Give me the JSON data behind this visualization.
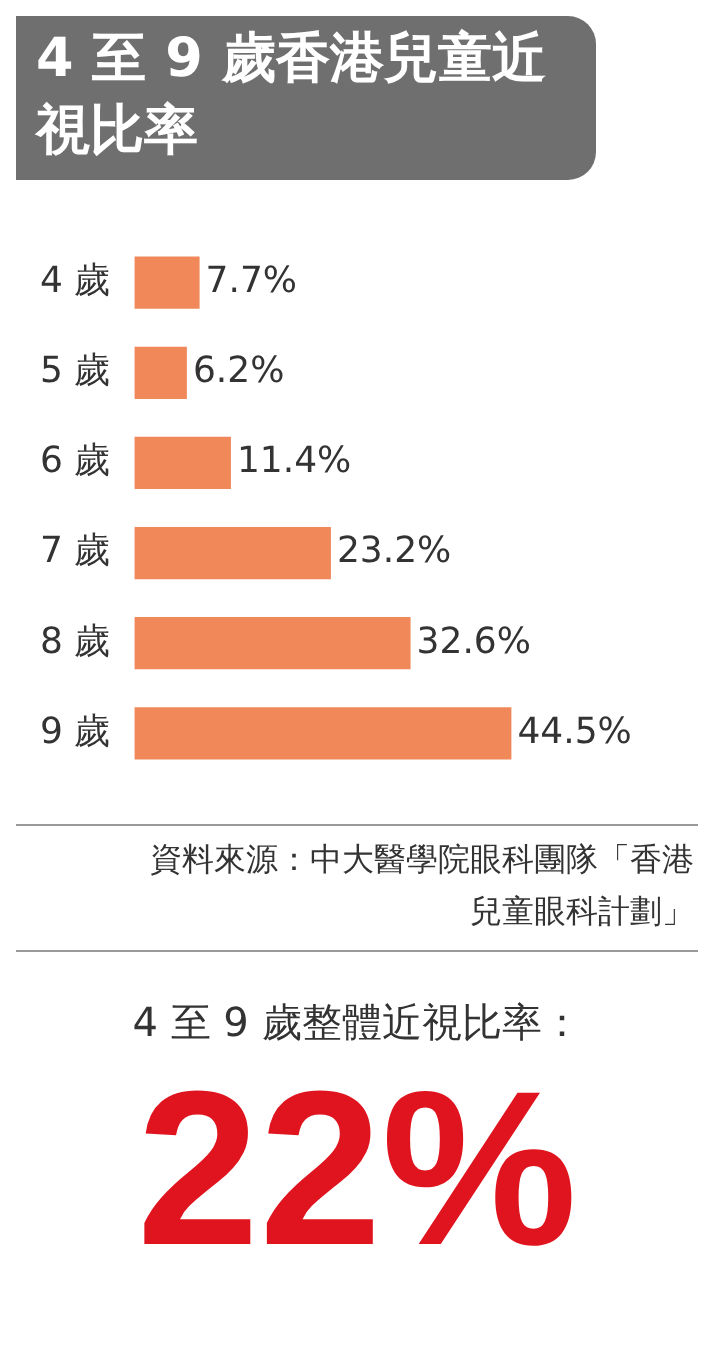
{
  "chart_data": {
    "type": "bar",
    "orientation": "horizontal",
    "title": "4 至 9 歲香港兒童近視比率",
    "categories": [
      "4 歲",
      "5 歲",
      "6 歲",
      "7 歲",
      "8 歲",
      "9 歲"
    ],
    "values": [
      7.7,
      6.2,
      11.4,
      23.2,
      32.6,
      44.5
    ],
    "value_labels": [
      "7.7%",
      "6.2%",
      "11.4%",
      "23.2%",
      "32.6%",
      "44.5%"
    ],
    "color": "#f0885a",
    "grid": false,
    "legend": false,
    "annotations": [
      "資料來源：中大醫學院眼科團隊「香港兒童眼科計劃」",
      "4 至 9 歲整體近視比率：",
      "22%"
    ]
  }
}
